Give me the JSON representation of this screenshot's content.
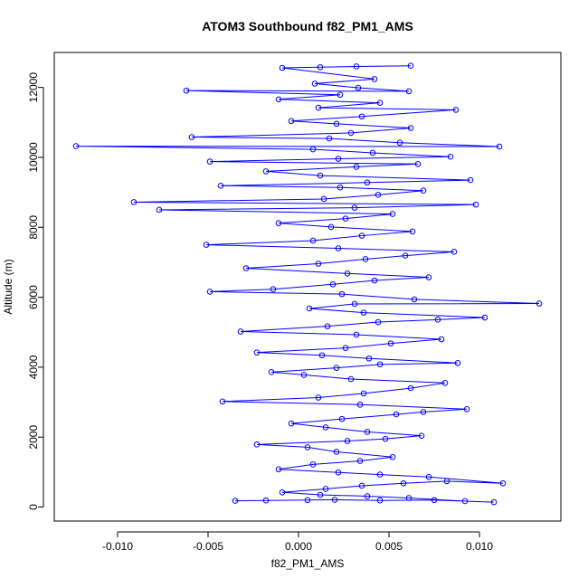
{
  "chart_data": {
    "type": "scatter",
    "title": "ATOM3 Southbound f82_PM1_AMS",
    "xlabel": "f82_PM1_AMS",
    "ylabel": "Altitude (m)",
    "xlim": [
      -0.0135,
      0.0145
    ],
    "ylim": [
      -400,
      13000
    ],
    "x_ticks": [
      -0.01,
      -0.005,
      0.0,
      0.005,
      0.01
    ],
    "x_tick_labels": [
      "-0.010",
      "-0.005",
      "0.000",
      "0.005",
      "0.010"
    ],
    "y_ticks": [
      0,
      2000,
      4000,
      6000,
      8000,
      10000,
      12000
    ],
    "y_tick_labels": [
      "0",
      "2000",
      "4000",
      "6000",
      "8000",
      "10000",
      "12000"
    ],
    "grid": false,
    "legend": "none",
    "color": "#0000ff",
    "series": [
      {
        "values": [
          [
            -0.0035,
            180
          ],
          [
            -0.0018,
            190
          ],
          [
            0.0005,
            200
          ],
          [
            0.002,
            210
          ],
          [
            0.0045,
            190
          ],
          [
            0.0075,
            200
          ],
          [
            0.0108,
            140
          ],
          [
            0.0092,
            170
          ],
          [
            0.0061,
            260
          ],
          [
            0.0038,
            310
          ],
          [
            0.0012,
            350
          ],
          [
            -0.0009,
            420
          ],
          [
            0.0015,
            520
          ],
          [
            0.0035,
            610
          ],
          [
            0.0058,
            680
          ],
          [
            0.0082,
            740
          ],
          [
            0.0113,
            680
          ],
          [
            0.0072,
            860
          ],
          [
            0.0045,
            930
          ],
          [
            0.0022,
            990
          ],
          [
            -0.0011,
            1080
          ],
          [
            0.0008,
            1220
          ],
          [
            0.0034,
            1320
          ],
          [
            0.0052,
            1430
          ],
          [
            0.0021,
            1580
          ],
          [
            0.0005,
            1710
          ],
          [
            -0.0023,
            1790
          ],
          [
            0.0027,
            1890
          ],
          [
            0.0048,
            1950
          ],
          [
            0.0068,
            2040
          ],
          [
            0.0038,
            2150
          ],
          [
            0.0015,
            2280
          ],
          [
            -0.0004,
            2390
          ],
          [
            0.0024,
            2520
          ],
          [
            0.0054,
            2650
          ],
          [
            0.0069,
            2720
          ],
          [
            0.0093,
            2800
          ],
          [
            0.0034,
            2930
          ],
          [
            -0.0042,
            3020
          ],
          [
            0.0011,
            3130
          ],
          [
            0.0036,
            3250
          ],
          [
            0.0062,
            3400
          ],
          [
            0.0081,
            3550
          ],
          [
            0.0029,
            3660
          ],
          [
            0.0003,
            3780
          ],
          [
            -0.0015,
            3860
          ],
          [
            0.0021,
            3980
          ],
          [
            0.0045,
            4080
          ],
          [
            0.0088,
            4120
          ],
          [
            0.0039,
            4250
          ],
          [
            0.0013,
            4340
          ],
          [
            -0.0023,
            4420
          ],
          [
            0.0026,
            4550
          ],
          [
            0.0051,
            4680
          ],
          [
            0.0079,
            4800
          ],
          [
            0.0032,
            4930
          ],
          [
            -0.0032,
            5020
          ],
          [
            0.0016,
            5170
          ],
          [
            0.0044,
            5290
          ],
          [
            0.0077,
            5360
          ],
          [
            0.0103,
            5420
          ],
          [
            0.0036,
            5560
          ],
          [
            0.0006,
            5680
          ],
          [
            0.0031,
            5810
          ],
          [
            0.0133,
            5820
          ],
          [
            0.0064,
            5940
          ],
          [
            0.0024,
            6090
          ],
          [
            -0.0049,
            6160
          ],
          [
            -0.0014,
            6230
          ],
          [
            0.0019,
            6370
          ],
          [
            0.0042,
            6480
          ],
          [
            0.0072,
            6570
          ],
          [
            0.0027,
            6680
          ],
          [
            -0.0029,
            6830
          ],
          [
            0.0011,
            6960
          ],
          [
            0.0037,
            7090
          ],
          [
            0.0059,
            7190
          ],
          [
            0.0086,
            7300
          ],
          [
            0.0022,
            7400
          ],
          [
            -0.0051,
            7500
          ],
          [
            0.0008,
            7620
          ],
          [
            0.0035,
            7760
          ],
          [
            0.0063,
            7880
          ],
          [
            0.0018,
            8010
          ],
          [
            -0.0011,
            8120
          ],
          [
            0.0026,
            8250
          ],
          [
            0.0052,
            8380
          ],
          [
            -0.0077,
            8500
          ],
          [
            0.0031,
            8560
          ],
          [
            0.0098,
            8650
          ],
          [
            -0.0091,
            8720
          ],
          [
            0.0014,
            8810
          ],
          [
            0.0044,
            8930
          ],
          [
            0.0069,
            9050
          ],
          [
            0.0023,
            9140
          ],
          [
            -0.0043,
            9190
          ],
          [
            0.0038,
            9280
          ],
          [
            0.0095,
            9350
          ],
          [
            0.0012,
            9480
          ],
          [
            -0.0018,
            9600
          ],
          [
            0.0032,
            9730
          ],
          [
            0.0066,
            9810
          ],
          [
            -0.0049,
            9880
          ],
          [
            0.0022,
            9960
          ],
          [
            0.0084,
            10020
          ],
          [
            0.0041,
            10130
          ],
          [
            0.0008,
            10230
          ],
          [
            -0.0123,
            10320
          ],
          [
            0.0111,
            10310
          ],
          [
            0.0056,
            10420
          ],
          [
            0.0017,
            10540
          ],
          [
            -0.0059,
            10580
          ],
          [
            0.0029,
            10700
          ],
          [
            0.0062,
            10840
          ],
          [
            0.0021,
            10960
          ],
          [
            -0.0004,
            11040
          ],
          [
            0.0035,
            11170
          ],
          [
            0.0087,
            11360
          ],
          [
            0.0011,
            11420
          ],
          [
            0.0045,
            11560
          ],
          [
            -0.0011,
            11660
          ],
          [
            0.0023,
            11790
          ],
          [
            -0.0062,
            11910
          ],
          [
            0.0061,
            11890
          ],
          [
            0.0033,
            11990
          ],
          [
            0.0009,
            12110
          ],
          [
            0.0042,
            12240
          ],
          [
            -0.0009,
            12560
          ],
          [
            0.0012,
            12580
          ],
          [
            0.0032,
            12600
          ],
          [
            0.0062,
            12620
          ]
        ]
      }
    ]
  }
}
